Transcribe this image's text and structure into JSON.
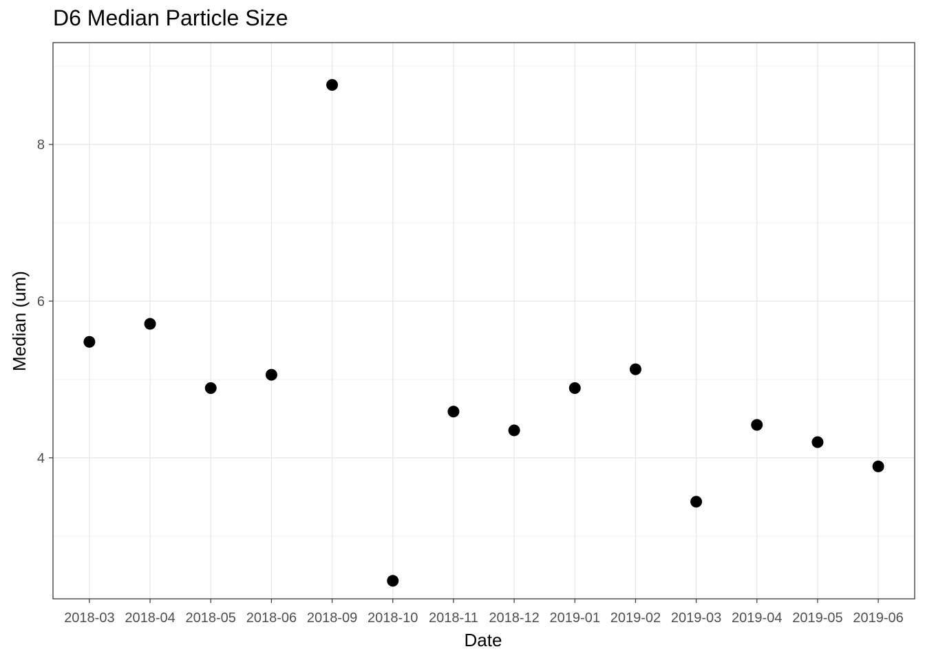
{
  "chart_data": {
    "type": "scatter",
    "title": "D6 Median Particle Size",
    "xlabel": "Date",
    "ylabel": "Median (um)",
    "categories": [
      "2018-03",
      "2018-04",
      "2018-05",
      "2018-06",
      "2018-09",
      "2018-10",
      "2018-11",
      "2018-12",
      "2019-01",
      "2019-02",
      "2019-03",
      "2019-04",
      "2019-05",
      "2019-06"
    ],
    "values": [
      5.48,
      5.71,
      4.89,
      5.06,
      8.76,
      2.43,
      4.59,
      4.35,
      4.89,
      5.13,
      3.44,
      4.42,
      4.2,
      3.89
    ],
    "ylim": [
      2.2,
      9.3
    ],
    "yticks": [
      4,
      6,
      8
    ],
    "point_color": "#000000",
    "grid": true,
    "legend": "none"
  }
}
